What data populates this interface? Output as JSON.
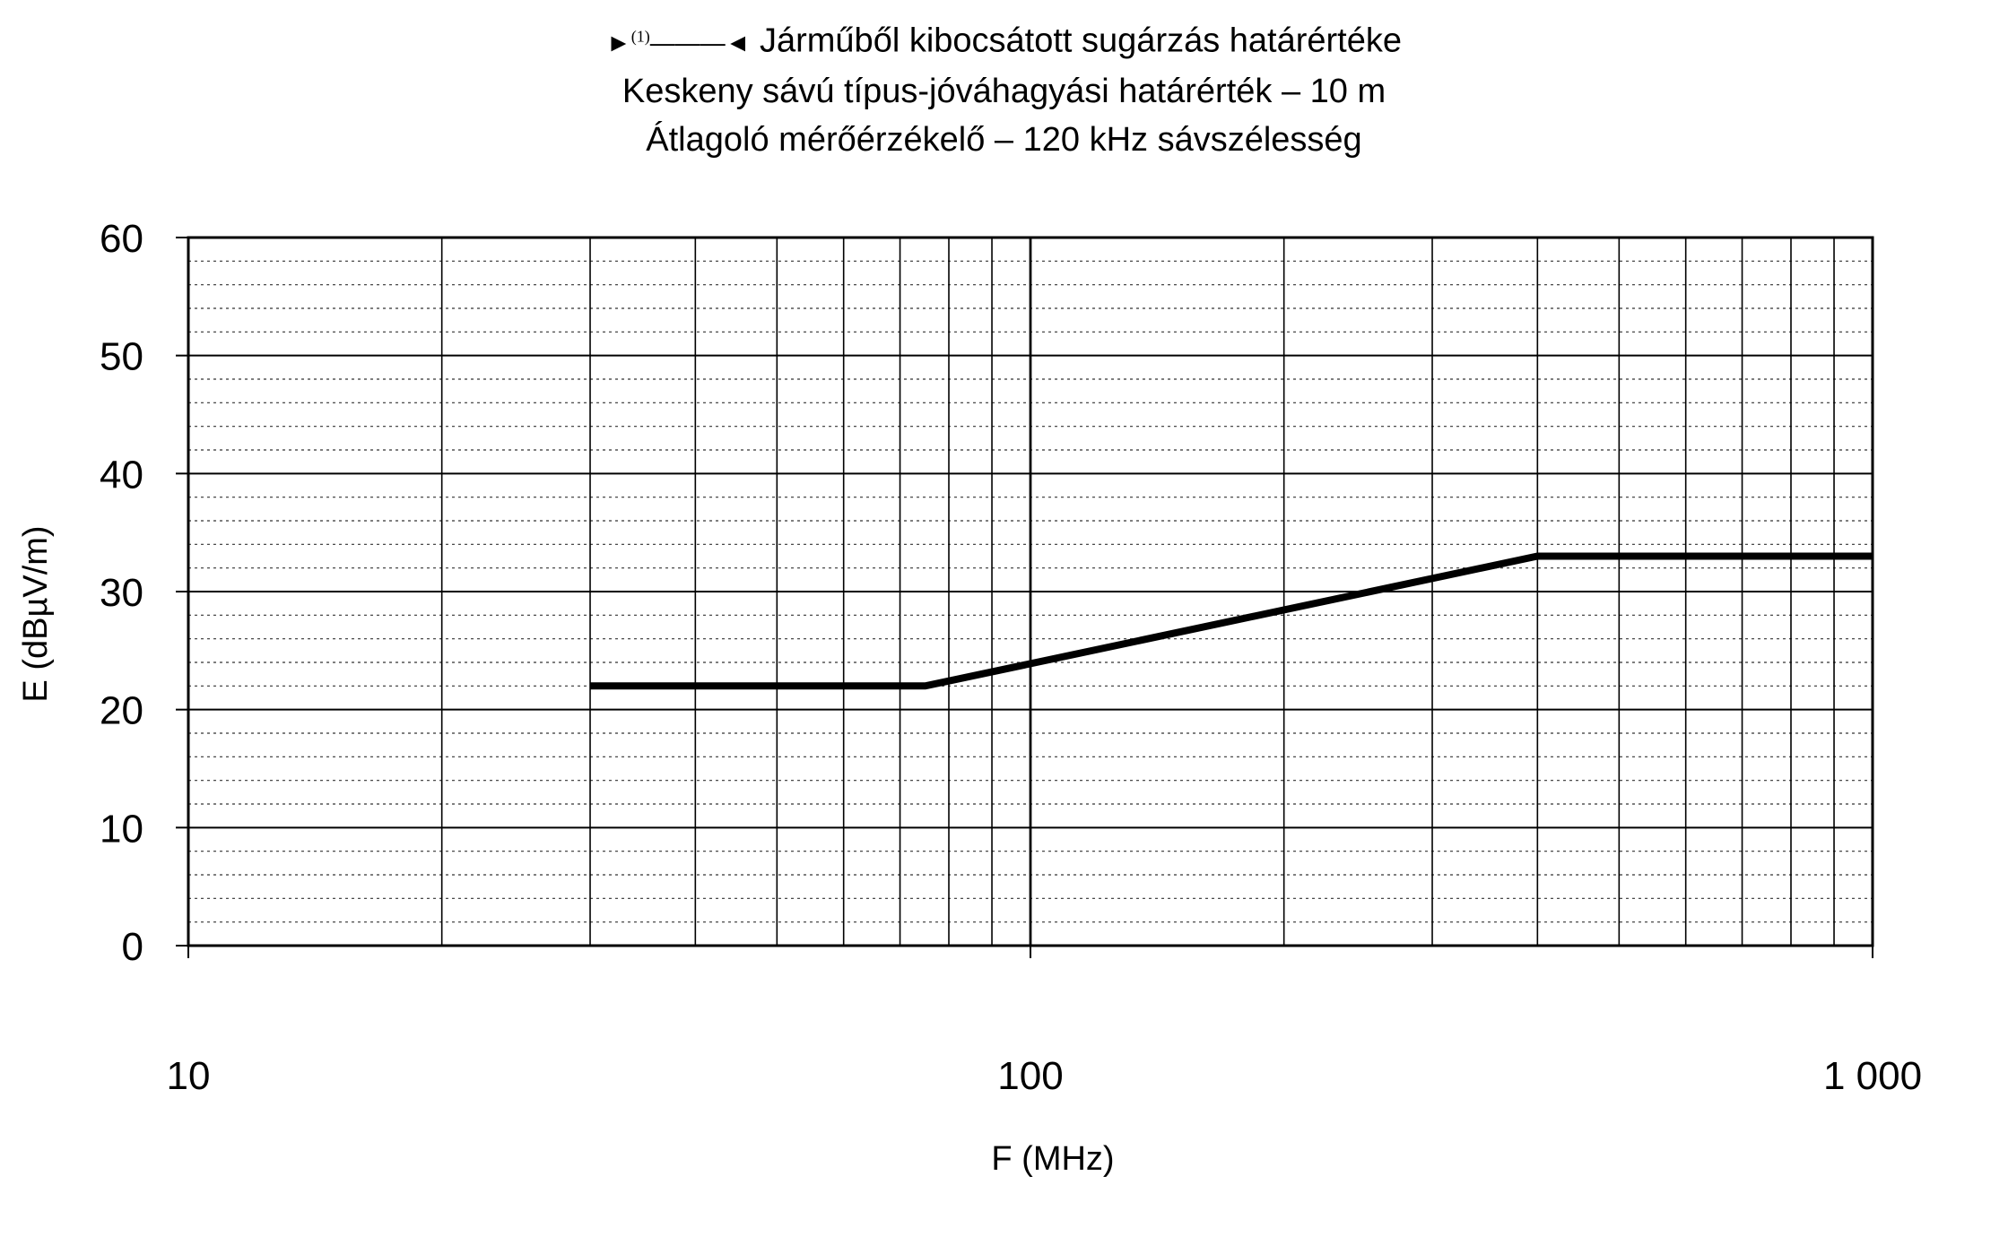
{
  "chart_data": {
    "type": "line",
    "title_marker": "►⁽¹⁾——◄",
    "title_lines": [
      "Járműből kibocsátott sugárzás határértéke",
      "Keskeny sávú típus-jóváhagyási határérték – 10 m",
      "Átlagoló mérőérzékelő – 120 kHz sávszélesség"
    ],
    "xlabel": "F (MHz)",
    "ylabel": "E (dBµV/m)",
    "x_scale": "log",
    "xlim": [
      10,
      1000
    ],
    "ylim": [
      0,
      60
    ],
    "x_tick_labels": [
      {
        "value": 10,
        "label": "10"
      },
      {
        "value": 100,
        "label": "100"
      },
      {
        "value": 1000,
        "label": "1 000"
      }
    ],
    "y_tick_labels": [
      {
        "value": 0,
        "label": "0"
      },
      {
        "value": 10,
        "label": "10"
      },
      {
        "value": 20,
        "label": "20"
      },
      {
        "value": 30,
        "label": "30"
      },
      {
        "value": 40,
        "label": "40"
      },
      {
        "value": 50,
        "label": "50"
      },
      {
        "value": 60,
        "label": "60"
      }
    ],
    "grid": true,
    "series": [
      {
        "points": [
          {
            "x": 30,
            "y": 22
          },
          {
            "x": 75,
            "y": 22
          },
          {
            "x": 400,
            "y": 33
          },
          {
            "x": 1000,
            "y": 33
          }
        ]
      }
    ]
  }
}
